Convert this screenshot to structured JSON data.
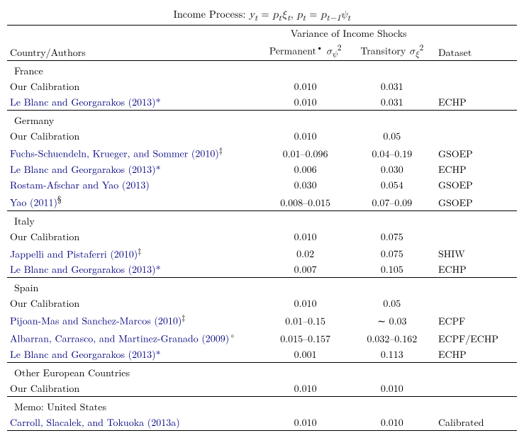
{
  "title_html": "Income Process: <span class='math'>y<sub>t</sub></span> = <span class='math'>p<sub>t</sub>ξ<sub>t</sub></span>, <span class='math'>p<sub>t</sub></span> = <span class='math'>p<sub>t−1</sub>ψ<sub>t</sub></span>",
  "headers": {
    "col1": "Country/Authors",
    "span": "Variance of Income Shocks",
    "perm_html": "Permanent<sup>•</sup> <span class='math'>σ</span><sub><span class='math'>ψ</span></sub><sup>2</sup>",
    "tran_html": "Transitory <span class='math'>σ</span><sub><span class='math'>ξ</span></sub><sup>2</sup>",
    "dataset": "Dataset"
  },
  "sections": [
    {
      "name": "France",
      "rows": [
        {
          "label": "Our Calibration",
          "link": false,
          "perm": "0.010",
          "tran": "0.031",
          "ds": ""
        },
        {
          "label": "Le Blanc and Georgarakos (2013)*",
          "link": true,
          "perm": "0.010",
          "tran": "0.031",
          "ds": "ECHP"
        }
      ]
    },
    {
      "name": "Germany",
      "rows": [
        {
          "label": "Our Calibration",
          "link": false,
          "perm": "0.010",
          "tran": "0.05",
          "ds": ""
        },
        {
          "label": "Fuchs-Schuendeln, Krueger, and Sommer (2010)",
          "sup": "‡",
          "link": true,
          "perm": "0.01–0.096",
          "tran": "0.04–0.19",
          "ds": "GSOEP"
        },
        {
          "label": "Le Blanc and Georgarakos (2013)*",
          "link": true,
          "perm": "0.006",
          "tran": "0.030",
          "ds": "ECHP"
        },
        {
          "label": "Rostam-Afschar and Yao (2013)",
          "link": true,
          "perm": "0.030",
          "tran": "0.054",
          "ds": "GSOEP"
        },
        {
          "label": "Yao (2011)",
          "sup": "§",
          "link": true,
          "perm": "0.008–0.015",
          "tran": "0.07–0.09",
          "ds": "GSOEP"
        }
      ]
    },
    {
      "name": "Italy",
      "rows": [
        {
          "label": "Our Calibration",
          "link": false,
          "perm": "0.010",
          "tran": "0.075",
          "ds": ""
        },
        {
          "label": "Jappelli and Pistaferri (2010)",
          "sup": "‡",
          "link": true,
          "perm": "0.02",
          "tran": "0.075",
          "ds": "SHIW"
        },
        {
          "label": "Le Blanc and Georgarakos (2013)*",
          "link": true,
          "perm": "0.007",
          "tran": "0.105",
          "ds": "ECHP"
        }
      ]
    },
    {
      "name": "Spain",
      "rows": [
        {
          "label": "Our Calibration",
          "link": false,
          "perm": "0.010",
          "tran": "0.05",
          "ds": ""
        },
        {
          "label": "Pijoan-Mas and Sanchez-Marcos (2010)",
          "sup": "‡",
          "link": true,
          "perm": "0.01–0.15",
          "tran": "∼ 0.03",
          "ds": "ECPF"
        },
        {
          "label": "Albarran, Carrasco, and Martinez-Granado (2009)",
          "sup": "◦",
          "link": true,
          "perm": "0.015–0.157",
          "tran": "0.032–0.162",
          "ds": "ECPF/ECHP"
        },
        {
          "label": "Le Blanc and Georgarakos (2013)*",
          "link": true,
          "perm": "0.001",
          "tran": "0.113",
          "ds": "ECHP"
        }
      ]
    },
    {
      "name": "Other European Countries",
      "rows": [
        {
          "label": "Our Calibration",
          "link": false,
          "perm": "0.010",
          "tran": "0.010",
          "ds": ""
        }
      ]
    },
    {
      "name": "Memo: United States",
      "rows": [
        {
          "label": "Carroll, Slacalek, and Tokuoka (2013a)",
          "link": true,
          "perm": "0.010",
          "tran": "0.010",
          "ds": "Calibrated"
        }
      ]
    }
  ]
}
